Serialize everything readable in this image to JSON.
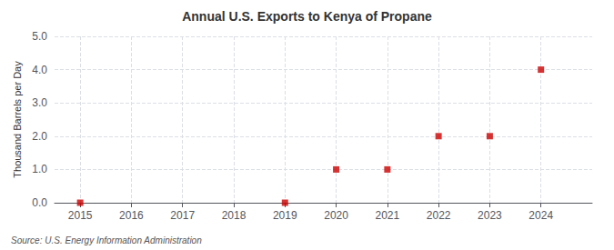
{
  "chart_data": {
    "type": "scatter",
    "title": "Annual U.S. Exports to Kenya of Propane",
    "ylabel": "Thousand Barrels per Day",
    "annotation": "Source: U.S. Energy Information Administration",
    "x": [
      2015,
      2016,
      2017,
      2018,
      2019,
      2020,
      2021,
      2022,
      2023,
      2024
    ],
    "values": [
      0,
      null,
      null,
      null,
      0,
      1,
      1,
      2,
      2,
      4
    ],
    "color": "#cc0000",
    "marker": "square",
    "xlim": [
      2014.5,
      2025.0
    ],
    "ylim": [
      0,
      5.0
    ],
    "xticks": [
      2015,
      2016,
      2017,
      2018,
      2019,
      2020,
      2021,
      2022,
      2023,
      2024
    ],
    "yticks": [
      {
        "value": 0,
        "label": "0.0"
      },
      {
        "value": 1,
        "label": "1.0"
      },
      {
        "value": 2,
        "label": "2.0"
      },
      {
        "value": 3,
        "label": "3.0"
      },
      {
        "value": 4,
        "label": "4.0"
      },
      {
        "value": 5,
        "label": "5.0"
      }
    ],
    "grid": true
  }
}
